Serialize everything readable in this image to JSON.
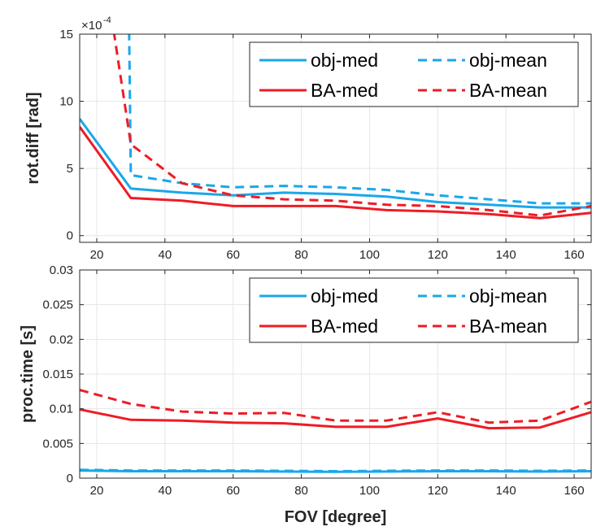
{
  "chart_data": [
    {
      "type": "line",
      "ylabel": "rot.diff [rad]",
      "xlabel": "",
      "y_exponent_label": "10",
      "y_exponent_power": "-4",
      "xlim": [
        15,
        165
      ],
      "ylim": [
        -0.5,
        15
      ],
      "xticks": [
        20,
        40,
        60,
        80,
        100,
        120,
        140,
        160
      ],
      "xtick_labels": [
        "20",
        "40",
        "60",
        "80",
        "100",
        "120",
        "140",
        "160"
      ],
      "yticks": [
        0,
        5,
        10,
        15
      ],
      "ytick_labels": [
        "0",
        "5",
        "10",
        "15"
      ],
      "grid": true,
      "legend_position": "top-right",
      "series": [
        {
          "name": "obj-med",
          "style": "solid",
          "color": "#1aa7ea",
          "x": [
            15,
            30,
            45,
            60,
            75,
            90,
            105,
            120,
            135,
            150,
            165
          ],
          "y": [
            8.7,
            3.5,
            3.2,
            3.0,
            3.2,
            3.1,
            2.9,
            2.5,
            2.3,
            2.1,
            2.1
          ]
        },
        {
          "name": "obj-mean",
          "style": "dashed",
          "color": "#1aa7ea",
          "x": [
            29.5,
            30,
            45,
            60,
            75,
            90,
            105,
            120,
            135,
            150,
            165
          ],
          "y": [
            15.2,
            4.5,
            3.9,
            3.6,
            3.7,
            3.6,
            3.4,
            3.0,
            2.7,
            2.4,
            2.4
          ]
        },
        {
          "name": "BA-med",
          "style": "solid",
          "color": "#ee1c25",
          "x": [
            15,
            30,
            45,
            60,
            75,
            90,
            105,
            120,
            135,
            150,
            165
          ],
          "y": [
            8.1,
            2.8,
            2.6,
            2.2,
            2.2,
            2.2,
            1.9,
            1.8,
            1.6,
            1.3,
            1.7
          ]
        },
        {
          "name": "BA-mean",
          "style": "dashed",
          "color": "#ee1c25",
          "x": [
            25,
            30,
            45,
            60,
            75,
            90,
            105,
            120,
            135,
            150,
            165
          ],
          "y": [
            15.2,
            6.8,
            3.9,
            3.0,
            2.7,
            2.6,
            2.3,
            2.2,
            1.9,
            1.5,
            2.2
          ]
        }
      ]
    },
    {
      "type": "line",
      "ylabel": "proc.time [s]",
      "xlabel": "FOV [degree]",
      "xlim": [
        15,
        165
      ],
      "ylim": [
        0,
        0.03
      ],
      "xticks": [
        20,
        40,
        60,
        80,
        100,
        120,
        140,
        160
      ],
      "xtick_labels": [
        "20",
        "40",
        "60",
        "80",
        "100",
        "120",
        "140",
        "160"
      ],
      "yticks": [
        0,
        0.005,
        0.01,
        0.015,
        0.02,
        0.025,
        0.03
      ],
      "ytick_labels": [
        "0",
        "0.005",
        "0.01",
        "0.015",
        "0.02",
        "0.025",
        "0.03"
      ],
      "grid": true,
      "legend_position": "top-right",
      "series": [
        {
          "name": "obj-med",
          "style": "solid",
          "color": "#1aa7ea",
          "x": [
            15,
            30,
            45,
            60,
            75,
            90,
            105,
            120,
            135,
            150,
            165
          ],
          "y": [
            0.0011,
            0.001,
            0.001,
            0.001,
            0.00095,
            0.0009,
            0.00095,
            0.001,
            0.001,
            0.00095,
            0.001
          ]
        },
        {
          "name": "obj-mean",
          "style": "dashed",
          "color": "#1aa7ea",
          "x": [
            15,
            30,
            45,
            60,
            75,
            90,
            105,
            120,
            135,
            150,
            165
          ],
          "y": [
            0.0012,
            0.0011,
            0.0011,
            0.0011,
            0.00105,
            0.001,
            0.00105,
            0.0011,
            0.0011,
            0.00105,
            0.0011
          ]
        },
        {
          "name": "BA-med",
          "style": "solid",
          "color": "#ee1c25",
          "x": [
            15,
            30,
            45,
            60,
            75,
            90,
            105,
            120,
            135,
            150,
            165
          ],
          "y": [
            0.0099,
            0.0084,
            0.0083,
            0.008,
            0.0079,
            0.0074,
            0.0074,
            0.0086,
            0.0072,
            0.0073,
            0.0095
          ]
        },
        {
          "name": "BA-mean",
          "style": "dashed",
          "color": "#ee1c25",
          "x": [
            15,
            30,
            45,
            60,
            75,
            90,
            105,
            120,
            135,
            150,
            165
          ],
          "y": [
            0.0127,
            0.0107,
            0.0096,
            0.0093,
            0.0094,
            0.0083,
            0.0083,
            0.0095,
            0.008,
            0.0083,
            0.011
          ]
        }
      ]
    }
  ]
}
